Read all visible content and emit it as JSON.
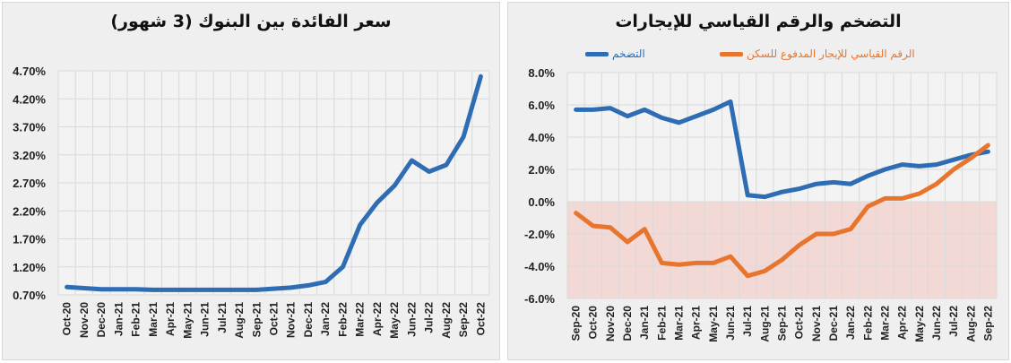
{
  "chart_data": [
    {
      "type": "line",
      "title": "سعر الفائدة بين البنوك (3 شهور)",
      "xlabel": "",
      "ylabel": "",
      "ylim": [
        0.7,
        4.7
      ],
      "yticks": [
        "4.70%",
        "4.20%",
        "3.70%",
        "3.20%",
        "2.70%",
        "2.20%",
        "1.70%",
        "1.20%",
        "0.70%"
      ],
      "grid": true,
      "categories": [
        "Oct-20",
        "Nov-20",
        "Dec-20",
        "Jan-21",
        "Feb-21",
        "Mar-21",
        "Apr-21",
        "May-21",
        "Jun-21",
        "Jul-21",
        "Aug-21",
        "Sep-21",
        "Oct-21",
        "Nov-21",
        "Dec-21",
        "Jan-22",
        "Feb-22",
        "Mar-22",
        "Apr-22",
        "May-22",
        "Jun-22",
        "Jul-22",
        "Aug-22",
        "Sep-22",
        "Oct-22"
      ],
      "series": [
        {
          "name": "سعر الفائدة",
          "color": "#2e6db4",
          "values": [
            0.84,
            0.82,
            0.8,
            0.8,
            0.8,
            0.79,
            0.79,
            0.79,
            0.79,
            0.79,
            0.79,
            0.79,
            0.81,
            0.83,
            0.87,
            0.93,
            1.2,
            1.95,
            2.35,
            2.65,
            3.1,
            2.9,
            3.02,
            3.52,
            4.6
          ]
        }
      ]
    },
    {
      "type": "line",
      "title": "التضخم والرقم القياسي للإيجارات",
      "xlabel": "",
      "ylabel": "",
      "ylim": [
        -6,
        8
      ],
      "yticks": [
        "8.0%",
        "6.0%",
        "4.0%",
        "2.0%",
        "0.0%",
        "-2.0%",
        "-4.0%",
        "-6.0%"
      ],
      "grid": true,
      "legend_position": "top",
      "shaded_region": {
        "from": -6,
        "to": 0,
        "color": "#f2d4d0"
      },
      "categories": [
        "Sep-20",
        "Oct-20",
        "Nov-20",
        "Dec-20",
        "Jan-21",
        "Feb-21",
        "Mar-21",
        "Apr-21",
        "May-21",
        "Jun-21",
        "Jul-21",
        "Aug-21",
        "Sep-21",
        "Oct-21",
        "Nov-21",
        "Dec-21",
        "Jan-22",
        "Feb-22",
        "Mar-22",
        "Apr-22",
        "May-22",
        "Jun-22",
        "Jul-22",
        "Aug-22",
        "Sep-22"
      ],
      "series": [
        {
          "name": "التضخم",
          "color": "#2e6db4",
          "values": [
            5.7,
            5.7,
            5.8,
            5.3,
            5.7,
            5.2,
            4.9,
            5.3,
            5.7,
            6.2,
            0.4,
            0.3,
            0.6,
            0.8,
            1.1,
            1.2,
            1.1,
            1.6,
            2.0,
            2.3,
            2.2,
            2.3,
            2.6,
            2.9,
            3.1
          ]
        },
        {
          "name": "الرقم القياسي للإيجار المدفوع للسكن",
          "color": "#e8752e",
          "values": [
            -0.7,
            -1.5,
            -1.6,
            -2.5,
            -1.7,
            -3.8,
            -3.9,
            -3.8,
            -3.8,
            -3.4,
            -4.6,
            -4.3,
            -3.6,
            -2.7,
            -2.0,
            -2.0,
            -1.7,
            -0.3,
            0.2,
            0.2,
            0.5,
            1.1,
            2.0,
            2.7,
            3.5
          ]
        }
      ]
    }
  ]
}
